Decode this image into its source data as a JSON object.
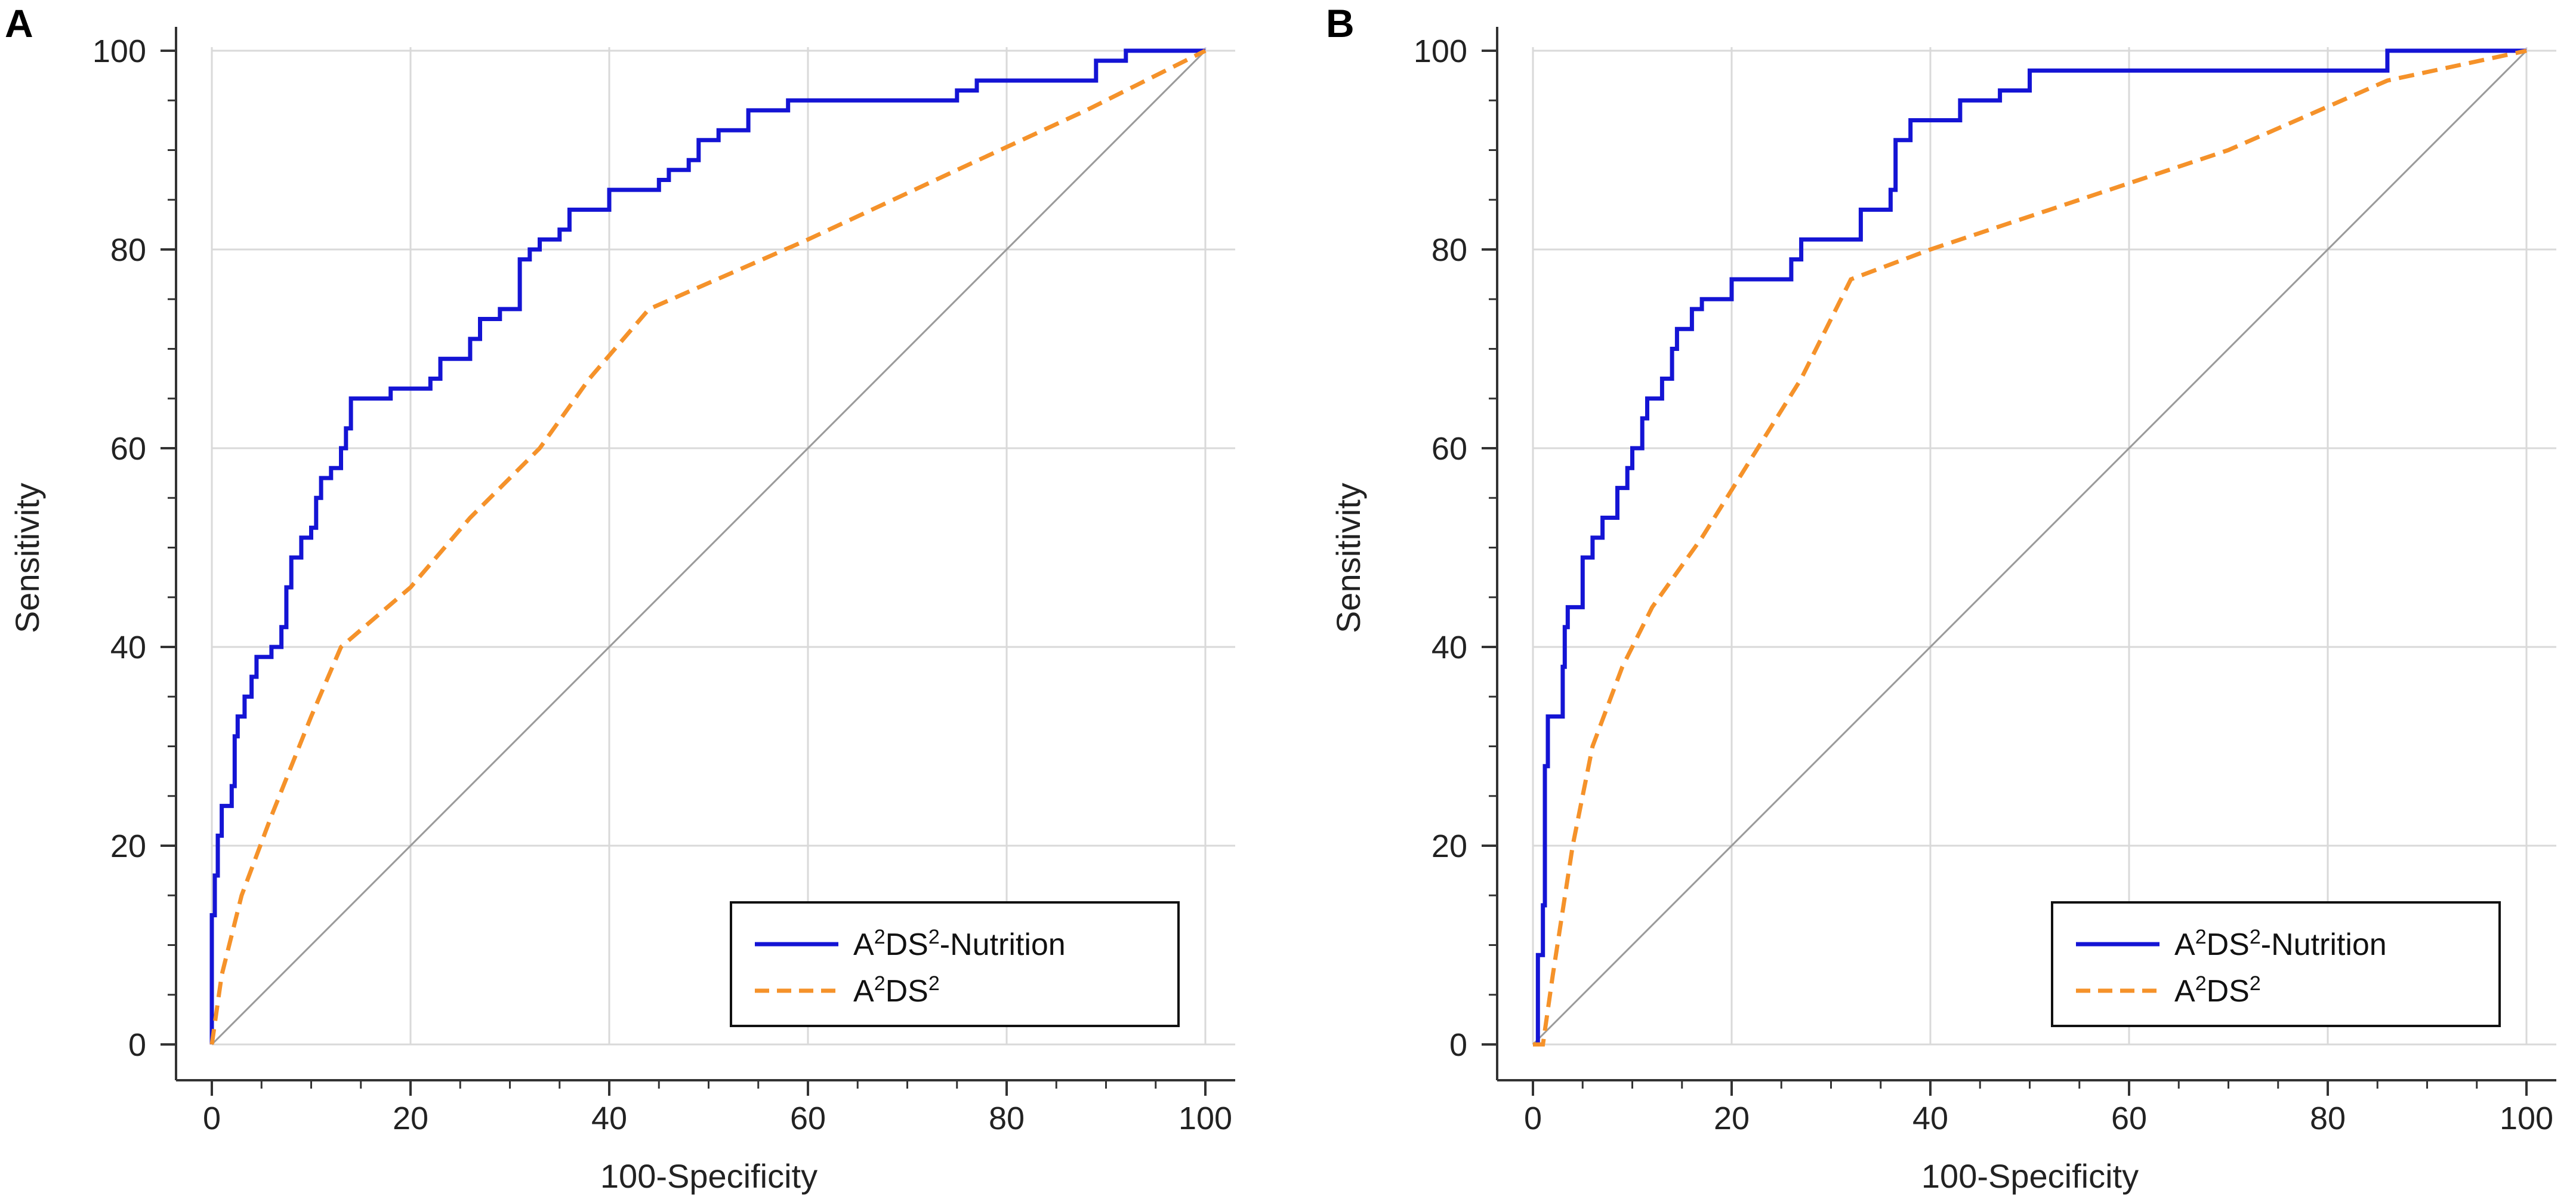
{
  "figure": {
    "panels": [
      "A",
      "B"
    ]
  },
  "chart_data": [
    {
      "panel": "A",
      "type": "line",
      "xlabel": "100-Specificity",
      "ylabel": "Sensitivity",
      "xlim": [
        0,
        100
      ],
      "ylim": [
        0,
        100
      ],
      "xticks": [
        0,
        20,
        40,
        60,
        80,
        100
      ],
      "yticks": [
        0,
        20,
        40,
        60,
        80,
        100
      ],
      "grid": true,
      "legend_position": "bottom-right",
      "colors": {
        "nutrition": "#1414d4",
        "a2ds2": "#f5922a",
        "reference": "#9a9a9a"
      },
      "legend": [
        {
          "base": "A",
          "sup1": "2",
          "mid": "DS",
          "sup2": "2",
          "tail": "-Nutrition",
          "style": "solid",
          "color": "#1414d4"
        },
        {
          "base": "A",
          "sup1": "2",
          "mid": "DS",
          "sup2": "2",
          "tail": "",
          "style": "dashed",
          "color": "#f5922a"
        }
      ],
      "series": [
        {
          "name": "A2DS2-Nutrition",
          "style": "step",
          "color": "#1414d4",
          "points": [
            [
              0,
              0
            ],
            [
              0,
              13
            ],
            [
              0.3,
              13
            ],
            [
              0.3,
              17
            ],
            [
              0.6,
              17
            ],
            [
              0.6,
              21
            ],
            [
              1,
              21
            ],
            [
              1,
              24
            ],
            [
              2,
              24
            ],
            [
              2,
              26
            ],
            [
              2.3,
              26
            ],
            [
              2.3,
              31
            ],
            [
              2.6,
              31
            ],
            [
              2.6,
              33
            ],
            [
              3.3,
              33
            ],
            [
              3.3,
              35
            ],
            [
              4,
              35
            ],
            [
              4,
              37
            ],
            [
              4.5,
              37
            ],
            [
              4.5,
              39
            ],
            [
              6,
              39
            ],
            [
              6,
              40
            ],
            [
              7,
              40
            ],
            [
              7,
              42
            ],
            [
              7.5,
              42
            ],
            [
              7.5,
              46
            ],
            [
              8,
              46
            ],
            [
              8,
              49
            ],
            [
              9,
              49
            ],
            [
              9,
              51
            ],
            [
              10,
              51
            ],
            [
              10,
              52
            ],
            [
              10.5,
              52
            ],
            [
              10.5,
              55
            ],
            [
              11,
              55
            ],
            [
              11,
              57
            ],
            [
              12,
              57
            ],
            [
              12,
              58
            ],
            [
              13,
              58
            ],
            [
              13,
              60
            ],
            [
              13.5,
              60
            ],
            [
              13.5,
              62
            ],
            [
              14,
              62
            ],
            [
              14,
              65
            ],
            [
              18,
              65
            ],
            [
              18,
              66
            ],
            [
              22,
              66
            ],
            [
              22,
              67
            ],
            [
              23,
              67
            ],
            [
              23,
              69
            ],
            [
              26,
              69
            ],
            [
              26,
              71
            ],
            [
              27,
              71
            ],
            [
              27,
              73
            ],
            [
              29,
              73
            ],
            [
              29,
              74
            ],
            [
              31,
              74
            ],
            [
              31,
              79
            ],
            [
              32,
              79
            ],
            [
              32,
              80
            ],
            [
              33,
              80
            ],
            [
              33,
              81
            ],
            [
              35,
              81
            ],
            [
              35,
              82
            ],
            [
              36,
              82
            ],
            [
              36,
              84
            ],
            [
              40,
              84
            ],
            [
              40,
              86
            ],
            [
              45,
              86
            ],
            [
              45,
              87
            ],
            [
              46,
              87
            ],
            [
              46,
              88
            ],
            [
              48,
              88
            ],
            [
              48,
              89
            ],
            [
              49,
              89
            ],
            [
              49,
              91
            ],
            [
              51,
              91
            ],
            [
              51,
              92
            ],
            [
              54,
              92
            ],
            [
              54,
              94
            ],
            [
              58,
              94
            ],
            [
              58,
              95
            ],
            [
              75,
              95
            ],
            [
              75,
              96
            ],
            [
              77,
              96
            ],
            [
              77,
              97
            ],
            [
              89,
              97
            ],
            [
              89,
              99
            ],
            [
              92,
              99
            ],
            [
              92,
              100
            ],
            [
              100,
              100
            ]
          ]
        },
        {
          "name": "A2DS2",
          "style": "dashed",
          "color": "#f5922a",
          "points": [
            [
              0,
              0
            ],
            [
              1,
              7
            ],
            [
              3,
              15
            ],
            [
              6,
              23
            ],
            [
              10,
              33
            ],
            [
              13,
              40
            ],
            [
              20,
              46
            ],
            [
              26,
              53
            ],
            [
              33,
              60
            ],
            [
              38,
              67
            ],
            [
              44,
              74
            ],
            [
              60,
              81
            ],
            [
              75,
              88
            ],
            [
              88,
              94
            ],
            [
              100,
              100
            ]
          ]
        },
        {
          "name": "reference",
          "style": "diagonal",
          "color": "#9a9a9a",
          "points": [
            [
              0,
              0
            ],
            [
              100,
              100
            ]
          ]
        }
      ]
    },
    {
      "panel": "B",
      "type": "line",
      "xlabel": "100-Specificity",
      "ylabel": "Sensitivity",
      "xlim": [
        0,
        100
      ],
      "ylim": [
        0,
        100
      ],
      "xticks": [
        0,
        20,
        40,
        60,
        80,
        100
      ],
      "yticks": [
        0,
        20,
        40,
        60,
        80,
        100
      ],
      "grid": true,
      "legend_position": "bottom-right",
      "colors": {
        "nutrition": "#1414d4",
        "a2ds2": "#f5922a",
        "reference": "#9a9a9a"
      },
      "legend": [
        {
          "base": "A",
          "sup1": "2",
          "mid": "DS",
          "sup2": "2",
          "tail": "-Nutrition",
          "style": "solid",
          "color": "#1414d4"
        },
        {
          "base": "A",
          "sup1": "2",
          "mid": "DS",
          "sup2": "2",
          "tail": "",
          "style": "dashed",
          "color": "#f5922a"
        }
      ],
      "series": [
        {
          "name": "A2DS2-Nutrition",
          "style": "step",
          "color": "#1414d4",
          "points": [
            [
              0,
              0
            ],
            [
              0.5,
              0
            ],
            [
              0.5,
              9
            ],
            [
              1,
              9
            ],
            [
              1,
              14
            ],
            [
              1.2,
              14
            ],
            [
              1.2,
              28
            ],
            [
              1.5,
              28
            ],
            [
              1.5,
              33
            ],
            [
              3,
              33
            ],
            [
              3,
              38
            ],
            [
              3.2,
              38
            ],
            [
              3.2,
              42
            ],
            [
              3.5,
              42
            ],
            [
              3.5,
              44
            ],
            [
              5,
              44
            ],
            [
              5,
              49
            ],
            [
              6,
              49
            ],
            [
              6,
              51
            ],
            [
              7,
              51
            ],
            [
              7,
              53
            ],
            [
              8.5,
              53
            ],
            [
              8.5,
              56
            ],
            [
              9.5,
              56
            ],
            [
              9.5,
              58
            ],
            [
              10,
              58
            ],
            [
              10,
              60
            ],
            [
              11,
              60
            ],
            [
              11,
              63
            ],
            [
              11.5,
              63
            ],
            [
              11.5,
              65
            ],
            [
              13,
              65
            ],
            [
              13,
              67
            ],
            [
              14,
              67
            ],
            [
              14,
              70
            ],
            [
              14.5,
              70
            ],
            [
              14.5,
              72
            ],
            [
              16,
              72
            ],
            [
              16,
              74
            ],
            [
              17,
              74
            ],
            [
              17,
              75
            ],
            [
              20,
              75
            ],
            [
              20,
              77
            ],
            [
              26,
              77
            ],
            [
              26,
              79
            ],
            [
              27,
              79
            ],
            [
              27,
              81
            ],
            [
              33,
              81
            ],
            [
              33,
              84
            ],
            [
              36,
              84
            ],
            [
              36,
              86
            ],
            [
              36.5,
              86
            ],
            [
              36.5,
              91
            ],
            [
              38,
              91
            ],
            [
              38,
              93
            ],
            [
              43,
              93
            ],
            [
              43,
              95
            ],
            [
              47,
              95
            ],
            [
              47,
              96
            ],
            [
              50,
              96
            ],
            [
              50,
              98
            ],
            [
              86,
              98
            ],
            [
              86,
              100
            ],
            [
              100,
              100
            ]
          ]
        },
        {
          "name": "A2DS2",
          "style": "dashed",
          "color": "#f5922a",
          "points": [
            [
              0,
              0
            ],
            [
              1,
              0
            ],
            [
              2,
              7
            ],
            [
              4,
              20
            ],
            [
              6,
              30
            ],
            [
              9,
              38
            ],
            [
              12,
              44
            ],
            [
              17,
              51
            ],
            [
              22,
              59
            ],
            [
              27,
              67
            ],
            [
              32,
              77
            ],
            [
              40,
              80
            ],
            [
              55,
              85
            ],
            [
              70,
              90
            ],
            [
              86,
              97
            ],
            [
              100,
              100
            ]
          ]
        },
        {
          "name": "reference",
          "style": "diagonal",
          "color": "#9a9a9a",
          "points": [
            [
              0,
              0
            ],
            [
              100,
              100
            ]
          ]
        }
      ]
    }
  ]
}
